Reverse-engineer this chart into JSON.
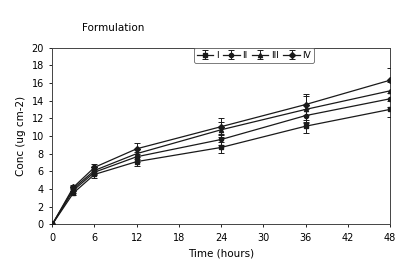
{
  "title": "Formulation",
  "xlabel": "Time (hours)",
  "ylabel": "Conc (ug cm-2)",
  "xlim": [
    0,
    48
  ],
  "ylim": [
    0,
    20
  ],
  "xticks": [
    0,
    6,
    12,
    18,
    24,
    30,
    36,
    42,
    48
  ],
  "yticks": [
    0,
    2,
    4,
    6,
    8,
    10,
    12,
    14,
    16,
    18,
    20
  ],
  "series": [
    {
      "label": "I",
      "color": "#1a1a1a",
      "marker": "s",
      "x": [
        0,
        3,
        6,
        12,
        24,
        36,
        48
      ],
      "y": [
        0,
        3.55,
        5.65,
        7.1,
        8.7,
        11.1,
        13.0
      ],
      "yerr": [
        0,
        0.25,
        0.35,
        0.55,
        0.6,
        0.75,
        0.9
      ]
    },
    {
      "label": "II",
      "color": "#1a1a1a",
      "marker": "s",
      "x": [
        0,
        3,
        6,
        12,
        24,
        36,
        48
      ],
      "y": [
        0,
        3.85,
        5.9,
        7.65,
        9.6,
        12.3,
        14.2
      ],
      "yerr": [
        0,
        0.25,
        0.35,
        0.55,
        0.6,
        0.75,
        0.9
      ]
    },
    {
      "label": "III",
      "color": "#1a1a1a",
      "marker": "s",
      "x": [
        0,
        3,
        6,
        12,
        24,
        36,
        48
      ],
      "y": [
        0,
        4.05,
        6.1,
        8.0,
        10.7,
        13.0,
        15.1
      ],
      "yerr": [
        0,
        0.25,
        0.35,
        0.55,
        0.85,
        1.5,
        0.95
      ]
    },
    {
      "label": "IV",
      "color": "#1a1a1a",
      "marker": "s",
      "x": [
        0,
        3,
        6,
        12,
        24,
        36,
        48
      ],
      "y": [
        0,
        4.2,
        6.45,
        8.55,
        11.05,
        13.55,
        16.3
      ],
      "yerr": [
        0,
        0.25,
        0.35,
        0.6,
        0.95,
        1.2,
        1.4
      ]
    }
  ],
  "legend_labels": [
    "I",
    "II",
    "III",
    "IV"
  ],
  "background_color": "#ffffff",
  "figsize": [
    4.02,
    2.64
  ],
  "dpi": 100
}
